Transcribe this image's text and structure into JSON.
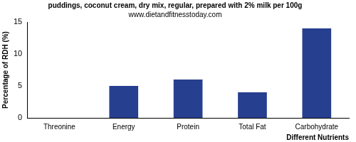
{
  "chart_data": {
    "type": "bar",
    "title": "puddings, coconut cream, dry mix, regular, prepared with 2% milk per 100g",
    "subtitle": "www.dietandfitnesstoday.com",
    "x_label": "Different Nutrients",
    "y_label": "Percentage of RDH (%)",
    "categories": [
      "Threonine",
      "Energy",
      "Protein",
      "Total Fat",
      "Carbohydrate"
    ],
    "values": [
      0,
      5,
      6,
      4,
      14
    ],
    "color": "#263f8f",
    "ylim": [
      0,
      15
    ],
    "yticks": [
      0,
      5,
      10,
      15
    ],
    "grid": false
  }
}
